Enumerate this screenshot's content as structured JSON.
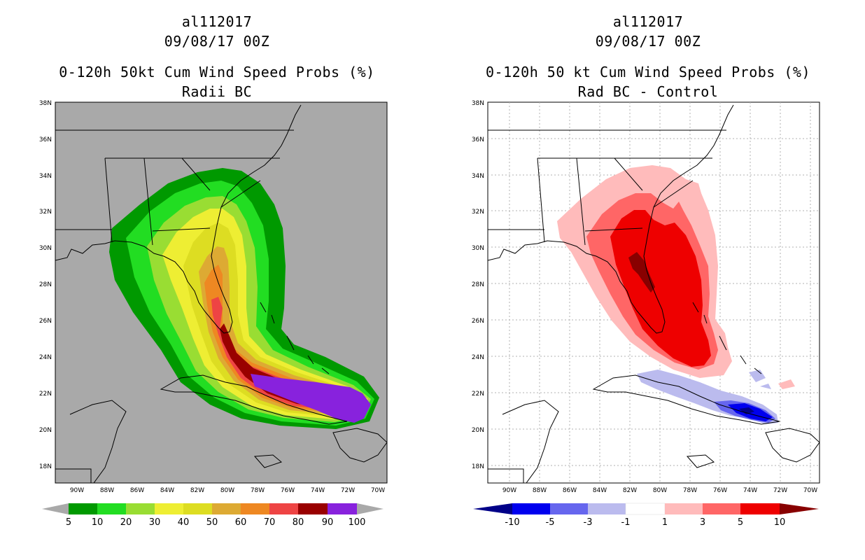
{
  "colors": {
    "land_bg_left": "#a9a9a9",
    "grid": "#b0b0b0",
    "coast": "#000000",
    "cbar_left": [
      "#009900",
      "#22dd22",
      "#99dd33",
      "#eeee33",
      "#dddd22",
      "#ddaa33",
      "#ee8822",
      "#ee4444",
      "#990000",
      "#8822dd"
    ],
    "cbar_right": [
      "#000088",
      "#0000ee",
      "#6666ee",
      "#bbbbee",
      "#ffffff",
      "#ffbbbb",
      "#ff6666",
      "#ee0000",
      "#880000"
    ]
  },
  "panels": [
    {
      "id": "left",
      "storm": "al112017",
      "date": "09/08/17 00Z",
      "title": "0-120h 50kt Cum Wind Speed Probs (%)",
      "subtitle": "Radii BC",
      "lat_labels": [
        "38N",
        "36N",
        "34N",
        "32N",
        "30N",
        "28N",
        "26N",
        "24N",
        "22N",
        "20N",
        "18N"
      ],
      "lon_labels": [
        "90W",
        "88W",
        "86W",
        "84W",
        "82W",
        "80W",
        "78W",
        "76W",
        "74W",
        "72W",
        "70W"
      ],
      "colorbar_labels": [
        "5",
        "10",
        "20",
        "30",
        "40",
        "50",
        "60",
        "70",
        "80",
        "90",
        "100"
      ]
    },
    {
      "id": "right",
      "storm": "al112017",
      "date": "09/08/17 00Z",
      "title": "0-120h 50 kt Cum Wind Speed Probs (%)",
      "subtitle": "Rad BC - Control",
      "lat_labels": [
        "38N",
        "36N",
        "34N",
        "32N",
        "30N",
        "28N",
        "26N",
        "24N",
        "22N",
        "20N",
        "18N"
      ],
      "lon_labels": [
        "90W",
        "88W",
        "86W",
        "84W",
        "82W",
        "80W",
        "78W",
        "76W",
        "74W",
        "72W",
        "70W"
      ],
      "colorbar_labels": [
        "-10",
        "-5",
        "-3",
        "-1",
        "1",
        "3",
        "5",
        "10"
      ]
    }
  ]
}
